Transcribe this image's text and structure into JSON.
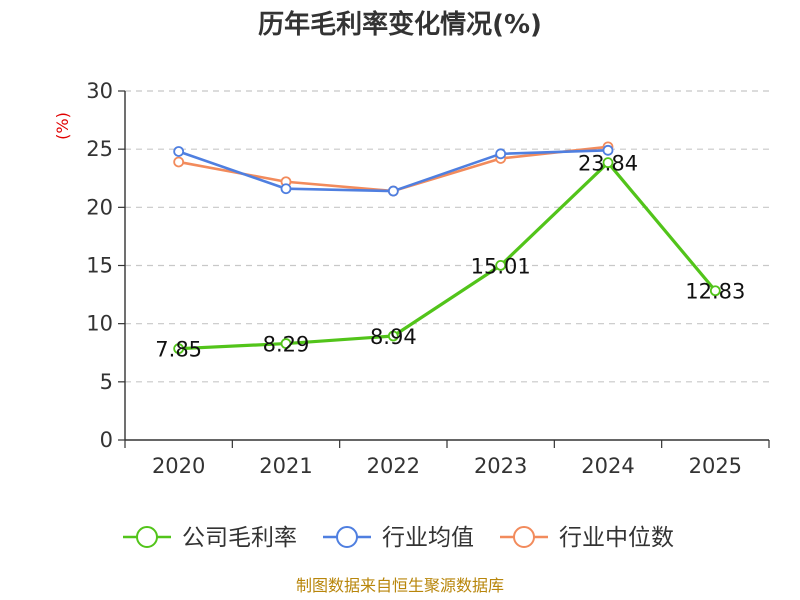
{
  "chart_data": {
    "type": "line",
    "title": "历年毛利率变化情况(%)",
    "ylabel": "(%)",
    "xlabel": "",
    "categories": [
      "2020",
      "2021",
      "2022",
      "2023",
      "2024",
      "2025"
    ],
    "ylim": [
      0,
      30
    ],
    "yticks": [
      0,
      5,
      10,
      15,
      20,
      25,
      30
    ],
    "grid": true,
    "legend_position": "bottom",
    "series": [
      {
        "name": "公司毛利率",
        "color": "#52c41a",
        "values": [
          7.85,
          8.29,
          8.94,
          15.01,
          23.84,
          12.83
        ],
        "labels": [
          "7.85",
          "8.29",
          "8.94",
          "15.01",
          "23.84",
          "12.83"
        ]
      },
      {
        "name": "行业均值",
        "color": "#4f7fe0",
        "values": [
          24.8,
          21.6,
          21.4,
          24.6,
          24.9,
          null
        ]
      },
      {
        "name": "行业中位数",
        "color": "#f28b5c",
        "values": [
          23.9,
          22.2,
          21.4,
          24.2,
          25.2,
          null
        ]
      }
    ],
    "source": "制图数据来自恒生聚源数据库"
  }
}
